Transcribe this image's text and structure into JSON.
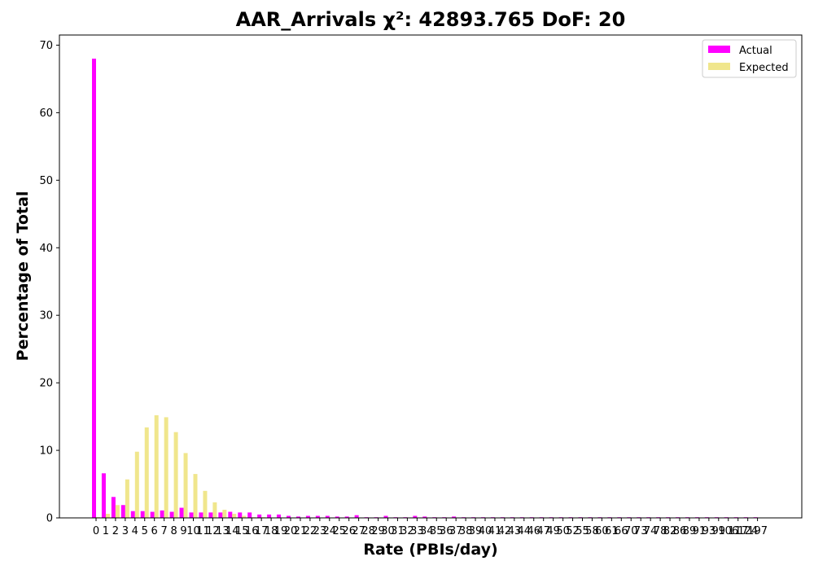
{
  "chart_data": {
    "type": "bar",
    "title": "AAR_Arrivals χ²: 42893.765 DoF: 20",
    "xlabel": "Rate (PBIs/day)",
    "ylabel": "Percentage of Total",
    "ylim": [
      0,
      71.5
    ],
    "yticks": [
      0,
      10,
      20,
      30,
      40,
      50,
      60,
      70
    ],
    "categories": [
      "0",
      "1",
      "2",
      "3",
      "4",
      "5",
      "6",
      "7",
      "8",
      "9",
      "10",
      "11",
      "12",
      "13",
      "14",
      "15",
      "16",
      "17",
      "18",
      "19",
      "20",
      "21",
      "22",
      "23",
      "24",
      "25",
      "26",
      "27",
      "28",
      "29",
      "30",
      "31",
      "32",
      "33",
      "34",
      "35",
      "36",
      "37",
      "38",
      "39",
      "40",
      "41",
      "42",
      "43",
      "44",
      "46",
      "47",
      "49",
      "50",
      "52",
      "55",
      "58",
      "60",
      "61",
      "66",
      "70",
      "73",
      "74",
      "78",
      "82",
      "86",
      "89",
      "91",
      "93",
      "99",
      "106",
      "117",
      "124",
      "197"
    ],
    "series": [
      {
        "name": "Actual",
        "color": "#ff00ff",
        "values": [
          68.0,
          6.6,
          3.1,
          1.9,
          1.0,
          1.0,
          0.9,
          1.1,
          0.9,
          1.5,
          0.8,
          0.8,
          0.8,
          0.8,
          0.9,
          0.8,
          0.8,
          0.5,
          0.5,
          0.5,
          0.3,
          0.2,
          0.3,
          0.3,
          0.3,
          0.2,
          0.2,
          0.4,
          0.1,
          0.1,
          0.3,
          0.1,
          0.1,
          0.3,
          0.2,
          0.1,
          0.1,
          0.2,
          0.1,
          0.1,
          0.1,
          0.1,
          0.1,
          0.1,
          0.1,
          0.1,
          0.1,
          0.1,
          0.1,
          0.1,
          0.1,
          0.1,
          0.1,
          0.1,
          0.1,
          0.1,
          0.1,
          0.1,
          0.1,
          0.1,
          0.1,
          0.1,
          0.1,
          0.1,
          0.1,
          0.1,
          0.1,
          0.1,
          0.1
        ]
      },
      {
        "name": "Expected",
        "color": "#f0e68c",
        "values": [
          0.1,
          0.6,
          1.9,
          5.7,
          9.8,
          13.4,
          15.2,
          14.9,
          12.7,
          9.6,
          6.5,
          4.0,
          2.3,
          1.2,
          0.6,
          0.3,
          0.1,
          0.1,
          0.0,
          0.0,
          0.0,
          0.0,
          0.0,
          0.0,
          0.0,
          0.0,
          0.0,
          0.0,
          0.0,
          0.0,
          0.0,
          0.0,
          0.0,
          0.0,
          0.0,
          0.0,
          0.0,
          0.0,
          0.0,
          0.0,
          0.0,
          0.0,
          0.0,
          0.0,
          0.0,
          0.0,
          0.0,
          0.0,
          0.0,
          0.0,
          0.0,
          0.0,
          0.0,
          0.0,
          0.0,
          0.0,
          0.0,
          0.0,
          0.0,
          0.0,
          0.0,
          0.0,
          0.0,
          0.0,
          0.0,
          0.0,
          0.0,
          0.0,
          0.0
        ]
      }
    ],
    "legend": {
      "position": "top-right",
      "entries": [
        "Actual",
        "Expected"
      ]
    },
    "grid": false
  }
}
